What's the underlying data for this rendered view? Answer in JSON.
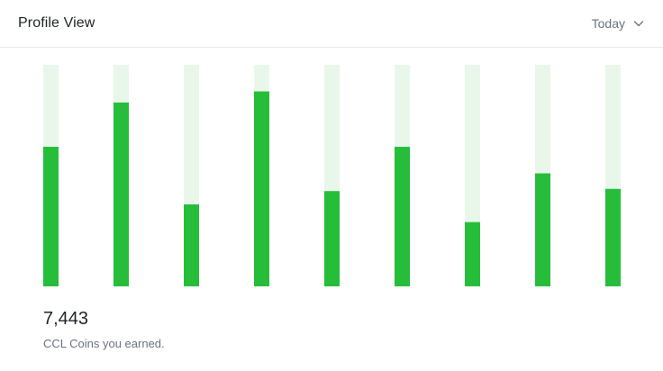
{
  "header": {
    "title": "Profile View",
    "period_selected": "Today",
    "period_icon": "chevron-down-icon"
  },
  "colors": {
    "bar_fill": "#26bd3a",
    "bar_track": "#e8f7ea"
  },
  "chart_data": {
    "type": "bar",
    "title": "Profile View",
    "categories": [
      "",
      "",
      "",
      "",
      "",
      "",
      "",
      "",
      ""
    ],
    "values": [
      63,
      83,
      37,
      88,
      43,
      63,
      29,
      51,
      44
    ],
    "ylim": [
      0,
      100
    ],
    "grid": false,
    "legend": "none"
  },
  "summary": {
    "value": "7,443",
    "label": "CCL Coins you earned."
  }
}
